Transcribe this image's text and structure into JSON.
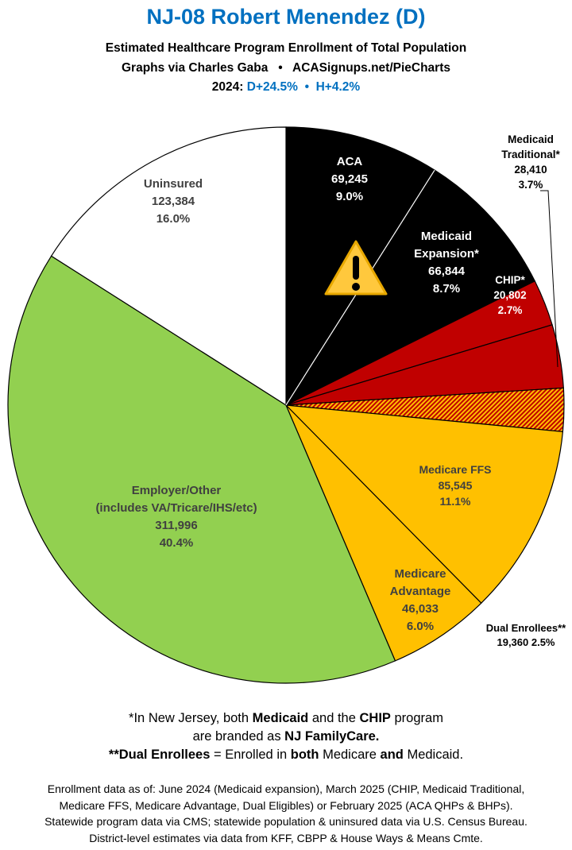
{
  "header": {
    "title": "NJ-08 Robert Menendez (D)",
    "subtitle": "Estimated Healthcare Program Enrollment of Total Population",
    "credit": "Graphs via Charles Gaba   •   ACASignups.net/PieCharts",
    "year_label": "2024:",
    "margins": "D+24.5%  •  H+4.2%"
  },
  "chart_data": {
    "type": "pie",
    "start": "top, clockwise",
    "slices": [
      {
        "name": "ACA",
        "value": 69245,
        "percent": 9.0,
        "color": "#000000",
        "label_lines": [
          "ACA",
          "69,245",
          "9.0%"
        ],
        "label_color": "#ffffff"
      },
      {
        "name": "Medicaid Expansion*",
        "value": 66844,
        "percent": 8.7,
        "color": "#000000",
        "label_lines": [
          "Medicaid",
          "Expansion*",
          "66,844",
          "8.7%"
        ],
        "label_color": "#ffffff"
      },
      {
        "name": "CHIP*",
        "value": 20802,
        "percent": 2.7,
        "color": "#c00000",
        "label_lines": [
          "CHIP*",
          "20,802",
          "2.7%"
        ],
        "label_color": "#ffffff"
      },
      {
        "name": "Medicaid Traditional*",
        "value": 28410,
        "percent": 3.7,
        "color": "#c00000",
        "label_lines": [
          "Medicaid",
          "Traditional*",
          "28,410",
          "3.7%"
        ],
        "label_color": "#000000",
        "callout": true
      },
      {
        "name": "Dual Enrollees**",
        "value": 19360,
        "percent": 2.5,
        "color": "hatch-red-yellow",
        "label_lines": [
          "Dual Enrollees**",
          "19,360 2.5%"
        ],
        "label_color": "#000000",
        "callout": true
      },
      {
        "name": "Medicare FFS",
        "value": 85545,
        "percent": 11.1,
        "color": "#ffc000",
        "label_lines": [
          "Medicare FFS",
          "85,545",
          "11.1%"
        ],
        "label_color": "#404040"
      },
      {
        "name": "Medicare Advantage",
        "value": 46033,
        "percent": 6.0,
        "color": "#ffc000",
        "label_lines": [
          "Medicare",
          "Advantage",
          "46,033",
          "6.0%"
        ],
        "label_color": "#404040"
      },
      {
        "name": "Employer/Other",
        "value": 311996,
        "percent": 40.4,
        "color": "#92d050",
        "label_lines": [
          "Employer/Other",
          "(includes VA/Tricare/IHS/etc)",
          "311,996",
          "40.4%"
        ],
        "label_color": "#404040"
      },
      {
        "name": "Uninsured",
        "value": 123384,
        "percent": 16.0,
        "color": "#ffffff",
        "label_lines": [
          "Uninsured",
          "123,384",
          "16.0%"
        ],
        "label_color": "#404040"
      }
    ],
    "annotation_icon": "warning-icon"
  },
  "notes": {
    "n1a": "*In New Jersey, both ",
    "n1b": "Medicaid",
    "n1c": " and the ",
    "n1d": "CHIP",
    "n1e": " program",
    "n2a": "are branded as ",
    "n2b": "NJ FamilyCare.",
    "n3a": "**Dual Enrollees",
    "n3b": " = Enrolled in ",
    "n3c": "both",
    "n3d": " Medicare ",
    "n3e": "and",
    "n3f": " Medicaid."
  },
  "footer": [
    "Enrollment data as of: June 2024 (Medicaid expansion), March 2025 (CHIP, Medicaid Traditional,",
    "Medicare FFS, Medicare Advantage, Dual Eligibles) or February 2025 (ACA QHPs & BHPs).",
    "Statewide program data via CMS; statewide population & uninsured data via U.S. Census Bureau.",
    "District-level estimates via data from KFF, CBPP & House Ways & Means Cmte."
  ]
}
